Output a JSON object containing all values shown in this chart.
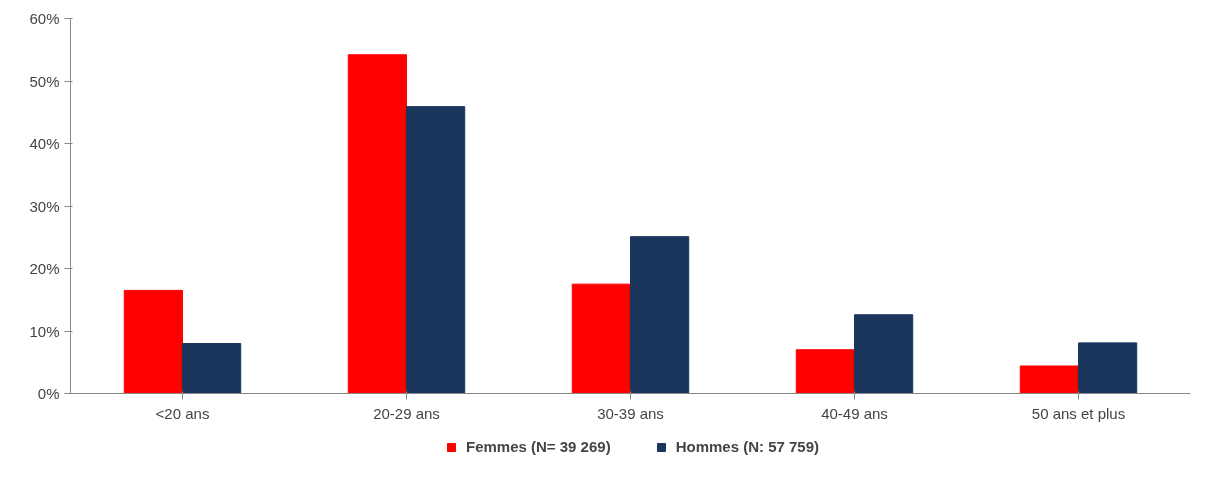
{
  "chart_data": {
    "type": "bar",
    "categories": [
      "<20 ans",
      "20-29 ans",
      "30-39 ans",
      "40-49 ans",
      "50 ans et plus"
    ],
    "series": [
      {
        "name": "Femmes (N= 39 269)",
        "color": "#ff0000",
        "values": [
          16.5,
          54.2,
          17.5,
          7.0,
          4.4
        ]
      },
      {
        "name": "Hommes (N: 57 759)",
        "color": "#1b365d",
        "values": [
          8.0,
          45.9,
          25.1,
          12.6,
          8.1
        ]
      }
    ],
    "ylim": [
      0,
      60
    ],
    "yticks": [
      {
        "value": 0,
        "label": "0%"
      },
      {
        "value": 10,
        "label": "10%"
      },
      {
        "value": 20,
        "label": "20%"
      },
      {
        "value": 30,
        "label": "30%"
      },
      {
        "value": 40,
        "label": "40%"
      },
      {
        "value": 50,
        "label": "50%"
      },
      {
        "value": 60,
        "label": "60%"
      }
    ],
    "grid": false,
    "legend": "bottom"
  }
}
